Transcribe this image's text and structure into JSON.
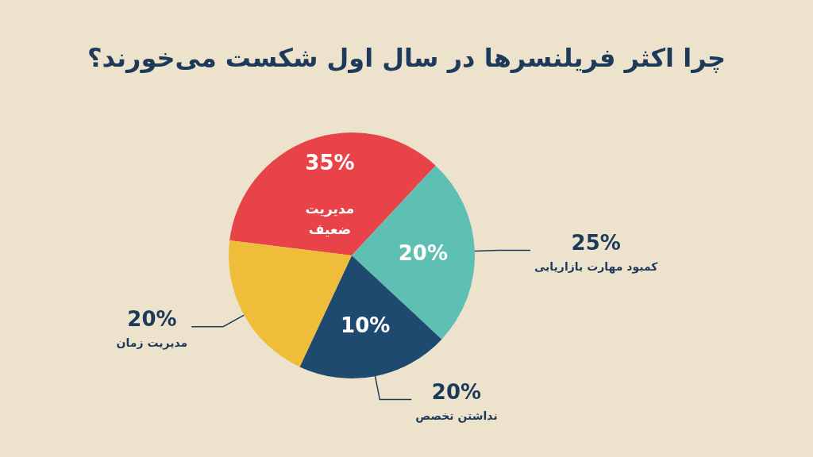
{
  "chart_data": {
    "type": "pie",
    "title": "چرا اکثر فریلنسرها در سال اول شکست می‌خورند؟",
    "categories": [
      "مدیریت ضعیف",
      "کمبود مهارت بازاریابی",
      "نداشتن تخصص",
      "مدیریت زمان"
    ],
    "values": [
      35,
      25,
      20,
      20
    ],
    "colors": [
      "#e84348",
      "#5ebfb3",
      "#1d4a6e",
      "#f0bd3a"
    ],
    "value_labels": [
      "35%",
      "25%",
      "20%",
      "20%"
    ],
    "annotations": [
      "20%",
      "10%"
    ],
    "legend": false
  }
}
